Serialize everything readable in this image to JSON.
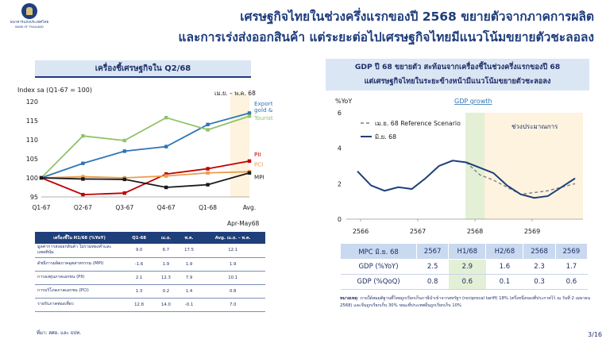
{
  "logo": {
    "name": "ธนาคารแห่งประเทศไทย",
    "sub": "BANK OF THAILAND"
  },
  "title": {
    "line1": "เศรษฐกิจไทยในช่วงครึ่งแรกของปี 2568 ขยายตัวจากภาคการผลิต",
    "line2": "และการเร่งส่งออกสินค้า แต่ระยะต่อไปเศรษฐกิจไทยมีแนวโน้มขยายตัวชะลอลง"
  },
  "left": {
    "header": "เครื่องชี้เศรษฐกิจใน Q2/68",
    "index_label": "Index sa (Q1-67 = 100)",
    "period_label": "เม.ย. – พ.ค. 68",
    "avg_label": "Avg.",
    "avg_period": "Apr-May68"
  },
  "chart_left": {
    "type": "line",
    "categories": [
      "Q1-67",
      "Q2-67",
      "Q3-67",
      "Q4-67",
      "Q1-68",
      "Avg."
    ],
    "ylim": [
      95,
      120
    ],
    "yticks": [
      95,
      100,
      105,
      110,
      115,
      120
    ],
    "series": [
      {
        "name": "Export value excl.",
        "name2": "gold & platinum",
        "color": "#2e75b6",
        "values": [
          100,
          103.8,
          107,
          108.2,
          114,
          117
        ]
      },
      {
        "name": "Tourist receipt",
        "color": "#92c36b",
        "values": [
          100,
          111,
          109.8,
          115.8,
          112.6,
          116.2
        ]
      },
      {
        "name": "PII",
        "color": "#c00000",
        "values": [
          100,
          95.6,
          96,
          101,
          102.4,
          104.4
        ]
      },
      {
        "name": "PCI",
        "color": "#ed9b4b",
        "values": [
          100,
          100.3,
          100,
          100.5,
          101.3,
          101.6
        ]
      },
      {
        "name": "MPI",
        "color": "#1a1a1a",
        "values": [
          100,
          99.7,
          99.6,
          97.5,
          98.2,
          101.3
        ]
      }
    ]
  },
  "left_table": {
    "headers": [
      "เครื่องชี้ใน H1/68 (%YoY)",
      "Q1-68",
      "เม.ย.",
      "พ.ค.",
      "Avg. เม.ย. – พ.ค."
    ],
    "rows": [
      {
        "label": "มูลค่าการส่งออกสินค้า ไม่รวมทองคำและแพลทินัม",
        "v": [
          "9.0",
          "6.7",
          "17.5",
          "12.1"
        ]
      },
      {
        "label": "ดัชนีการผลิตภาคอุตสาหกรรม (MPI)",
        "v": [
          "-1.6",
          "1.9",
          "1.9",
          "1.9"
        ]
      },
      {
        "label": "การลงทุนภาคเอกชน (PII)",
        "v": [
          "2.1",
          "12.3",
          "7.9",
          "10.1"
        ]
      },
      {
        "label": "การบริโภคภาคเอกชน (PCI)",
        "v": [
          "1.3",
          "0.2",
          "1.4",
          "0.8"
        ]
      },
      {
        "label": "รายรับภาคท่องเที่ยว",
        "v": [
          "12.8",
          "14.0",
          "-0.1",
          "7.0"
        ]
      }
    ]
  },
  "source": "ที่มา: สศอ. และ ธปท.",
  "right": {
    "header_line1": "GDP ปี 68 ขยายตัว สะท้อนจากเครื่องชี้ในช่วงครึ่งแรกของปี 68",
    "header_line2": "แต่เศรษฐกิจไทยในระยะข้างหน้ามีแนวโน้มขยายตัวชะลอลง",
    "y_label": "%YoY",
    "chart_title": "GDP growth",
    "forecast_label": "ช่วงประมาณการ"
  },
  "chart_right": {
    "type": "line",
    "x_labels": [
      "2566",
      "2567",
      "2568",
      "2569"
    ],
    "ylim": [
      0,
      6
    ],
    "yticks": [
      0,
      2,
      4,
      6
    ],
    "series": [
      {
        "name": "เม.ย. 68 Reference Scenario",
        "color": "#7f7f7f",
        "dashed": true,
        "values": [
          null,
          null,
          null,
          null,
          null,
          null,
          null,
          null,
          3.2,
          2.5,
          2.2,
          1.8,
          1.4,
          1.5,
          1.6,
          1.8,
          2.0
        ]
      },
      {
        "name": "มิ.ย. 68",
        "color": "#1f3f7a",
        "dashed": false,
        "values": [
          2.7,
          1.9,
          1.6,
          1.8,
          1.7,
          2.3,
          3.0,
          3.3,
          3.2,
          2.9,
          2.6,
          1.9,
          1.4,
          1.2,
          1.3,
          1.8,
          2.3
        ]
      }
    ]
  },
  "right_table": {
    "headers": [
      "MPC มิ.ย. 68",
      "2567",
      "H1/68",
      "H2/68",
      "2568",
      "2569"
    ],
    "rows": [
      {
        "label": "GDP (%YoY)",
        "v": [
          "2.5",
          "2.9",
          "1.6",
          "2.3",
          "1.7"
        ]
      },
      {
        "label": "GDP (%QoQ)",
        "v": [
          "0.8",
          "0.6",
          "0.1",
          "0.3",
          "0.6"
        ]
      }
    ]
  },
  "note": {
    "bold": "หมายเหตุ",
    "text": ": ภายใต้สมมติฐานที่ไทยถูกเรียกเก็บภาษีนำเข้าจากสหรัฐฯ (reciprocal tariff) 18% (ครึ่งหนึ่งของที่ประกาศไว้ ณ วันที่ 2 เมษายน 2568) และจีนถูกเรียกเก็บ 30% ขณะที่ประเทศอื่นถูกเรียกเก็บ 10%"
  },
  "page": "3/16"
}
